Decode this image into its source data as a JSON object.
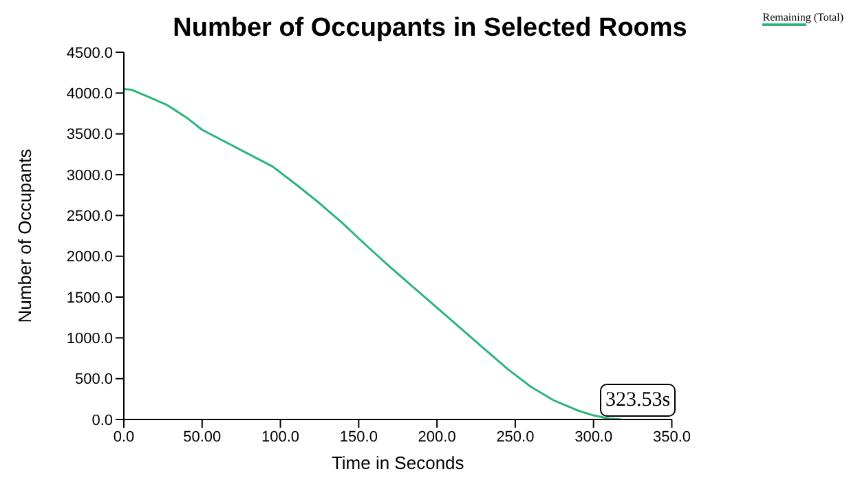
{
  "chart_data": {
    "type": "line",
    "title": "Number of Occupants in Selected Rooms",
    "xlabel": "Time in Seconds",
    "ylabel": "Number of Occupants",
    "x": [
      0,
      5,
      15,
      28,
      40,
      50,
      65,
      80,
      95,
      110,
      125,
      140,
      155,
      170,
      185,
      200,
      215,
      230,
      245,
      260,
      275,
      290,
      300,
      310,
      318
    ],
    "series": [
      {
        "name": "Remaining (Total)",
        "color": "#2bb57a",
        "values": [
          4050,
          4040,
          3960,
          3850,
          3700,
          3550,
          3400,
          3250,
          3100,
          2880,
          2650,
          2400,
          2130,
          1870,
          1620,
          1370,
          1120,
          870,
          620,
          400,
          230,
          110,
          50,
          10,
          0
        ]
      }
    ],
    "xlim": [
      0,
      350
    ],
    "xticks": [
      {
        "value": 0,
        "label": "0.0"
      },
      {
        "value": 50,
        "label": "50.00"
      },
      {
        "value": 100,
        "label": "100.0"
      },
      {
        "value": 150,
        "label": "150.0"
      },
      {
        "value": 200,
        "label": "200.0"
      },
      {
        "value": 250,
        "label": "250.0"
      },
      {
        "value": 300,
        "label": "300.0"
      },
      {
        "value": 350,
        "label": "350.0"
      }
    ],
    "ylim": [
      0,
      4500
    ],
    "yticks": [
      {
        "value": 0,
        "label": "0.0"
      },
      {
        "value": 500,
        "label": "500.0"
      },
      {
        "value": 1000,
        "label": "1000.0"
      },
      {
        "value": 1500,
        "label": "1500.0"
      },
      {
        "value": 2000,
        "label": "2000.0"
      },
      {
        "value": 2500,
        "label": "2500.0"
      },
      {
        "value": 3000,
        "label": "3000.0"
      },
      {
        "value": 3500,
        "label": "3500.0"
      },
      {
        "value": 4000,
        "label": "4000.0"
      },
      {
        "value": 4500,
        "label": "4500.0"
      }
    ],
    "annotations": [
      "323.53s"
    ],
    "grid": false,
    "legend": "top right",
    "marker": "none",
    "line_style": "solid"
  }
}
